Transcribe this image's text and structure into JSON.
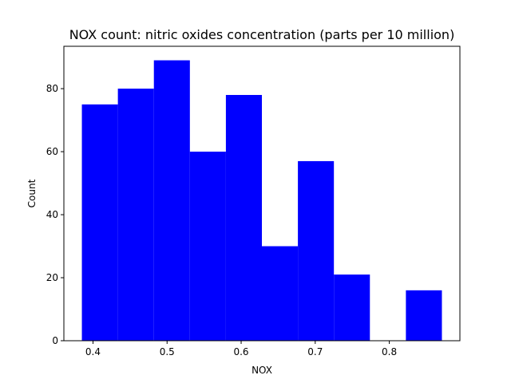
{
  "chart_data": {
    "type": "bar",
    "title": "NOX count: nitric oxides concentration (parts per 10 million)",
    "xlabel": "NOX",
    "ylabel": "Count",
    "bin_edges": [
      0.385,
      0.4336,
      0.4822,
      0.5308,
      0.5794,
      0.628,
      0.6766,
      0.7252,
      0.7738,
      0.8224,
      0.871
    ],
    "values": [
      75,
      80,
      89,
      60,
      78,
      30,
      57,
      21,
      0,
      16
    ],
    "xlim": [
      0.3607,
      0.8953
    ],
    "ylim": [
      0,
      93.45
    ],
    "xticks": [
      0.4,
      0.5,
      0.6,
      0.7,
      0.8
    ],
    "xtick_labels": [
      "0.4",
      "0.5",
      "0.6",
      "0.7",
      "0.8"
    ],
    "yticks": [
      0,
      20,
      40,
      60,
      80
    ],
    "ytick_labels": [
      "0",
      "20",
      "40",
      "60",
      "80"
    ],
    "bar_color": "#0000ff",
    "grid": false,
    "legend": "none"
  }
}
